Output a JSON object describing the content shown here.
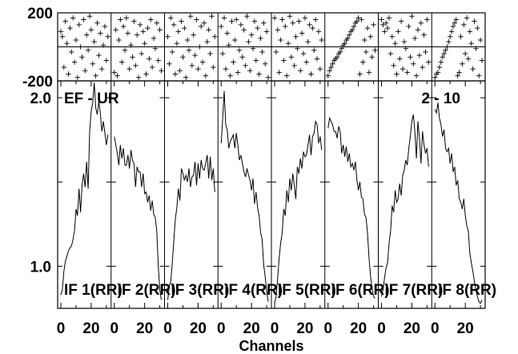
{
  "chart_data": {
    "type": "line",
    "baseline_label": "EF - UR",
    "scan_label": "2 - 10",
    "xlabel": "Channels",
    "x_ticks": [
      0,
      20
    ],
    "amplitude": {
      "ylim": [
        0.75,
        2.1
      ],
      "y_ticks": [
        1.0,
        2.0
      ],
      "y_ticks_unlabeled": [
        1.5
      ]
    },
    "phase": {
      "ylim": [
        -200,
        200
      ],
      "y_ticks": [
        -200,
        200
      ]
    },
    "panels": [
      {
        "name": "IF 1(RR)",
        "amplitude": [
          0.83,
          0.86,
          0.97,
          1.03,
          1.06,
          1.09,
          1.11,
          1.12,
          1.16,
          1.21,
          1.34,
          1.3,
          1.46,
          1.32,
          1.48,
          1.55,
          1.47,
          1.62,
          1.46,
          1.8,
          1.92,
          1.97,
          2.09,
          1.94,
          1.9,
          1.98,
          1.91,
          1.8,
          1.86,
          1.79,
          1.72,
          1.78
        ],
        "phase": [
          90,
          60,
          -120,
          150,
          20,
          -160,
          110,
          -30,
          170,
          -90,
          40,
          -180,
          130,
          0,
          -60,
          160,
          -140,
          70,
          -20,
          180,
          100,
          -100,
          30,
          -170,
          140,
          -50,
          80,
          -130,
          10,
          120,
          -80,
          60
        ]
      },
      {
        "name": "IF 2(RR)",
        "amplitude": [
          1.77,
          1.72,
          1.67,
          1.6,
          1.72,
          1.64,
          1.7,
          1.6,
          1.6,
          1.66,
          1.58,
          1.69,
          1.63,
          1.61,
          1.47,
          1.59,
          1.56,
          1.56,
          1.47,
          1.55,
          1.43,
          1.44,
          1.38,
          1.42,
          1.33,
          1.39,
          1.31,
          1.29,
          1.21,
          1.0,
          0.86,
          0.8
        ],
        "phase": [
          -150,
          100,
          -170,
          40,
          160,
          -90,
          120,
          -20,
          170,
          80,
          -130,
          10,
          -60,
          150,
          -110,
          70,
          -180,
          130,
          -40,
          90,
          20,
          -160,
          110,
          -70,
          160,
          -120,
          50,
          -10,
          140,
          -80,
          100,
          -140
        ]
      },
      {
        "name": "IF 3(RR)",
        "amplitude": [
          0.8,
          0.88,
          0.91,
          1.02,
          1.15,
          1.28,
          1.35,
          1.46,
          1.39,
          1.58,
          1.55,
          1.51,
          1.54,
          1.5,
          1.58,
          1.47,
          1.53,
          1.54,
          1.62,
          1.48,
          1.61,
          1.52,
          1.63,
          1.58,
          1.57,
          1.61,
          1.66,
          1.52,
          1.65,
          1.51,
          1.58,
          1.44
        ],
        "phase": [
          60,
          -100,
          170,
          -30,
          130,
          -160,
          20,
          90,
          -140,
          150,
          -60,
          110,
          -180,
          40,
          -20,
          180,
          -110,
          70,
          -50,
          160,
          -130,
          0,
          120,
          -90,
          140,
          -170,
          30,
          100,
          -40,
          180,
          -120,
          60
        ]
      },
      {
        "name": "IF 4(RR)",
        "amplitude": [
          1.73,
          1.87,
          2.04,
          1.84,
          1.81,
          1.7,
          1.74,
          1.76,
          1.78,
          1.7,
          1.79,
          1.72,
          1.63,
          1.66,
          1.61,
          1.56,
          1.53,
          1.58,
          1.54,
          1.51,
          1.45,
          1.52,
          1.37,
          1.44,
          1.35,
          1.3,
          1.2,
          1.16,
          1.01,
          0.94,
          0.85,
          0.79
        ],
        "phase": [
          120,
          -40,
          170,
          -130,
          80,
          10,
          -170,
          150,
          -90,
          40,
          160,
          -150,
          -20,
          130,
          -60,
          100,
          -110,
          180,
          30,
          -140,
          70,
          -10,
          150,
          -80,
          110,
          -160,
          50,
          -30,
          140,
          -100,
          90,
          -180
        ]
      },
      {
        "name": "IF 5(RR)",
        "amplitude": [
          0.78,
          0.82,
          0.93,
          1.05,
          1.14,
          1.2,
          1.34,
          1.3,
          1.45,
          1.38,
          1.52,
          1.45,
          1.55,
          1.48,
          1.4,
          1.59,
          1.55,
          1.64,
          1.58,
          1.68,
          1.65,
          1.66,
          1.72,
          1.78,
          1.66,
          1.77,
          1.79,
          1.86,
          1.84,
          1.73,
          1.77,
          1.69
        ],
        "phase": [
          170,
          -30,
          100,
          -150,
          40,
          160,
          -80,
          120,
          -170,
          20,
          180,
          -60,
          140,
          -110,
          60,
          -10,
          150,
          -140,
          80,
          -40,
          170,
          -90,
          30,
          130,
          -160,
          110,
          -20,
          160,
          -70,
          90,
          -130,
          40
        ]
      },
      {
        "name": "IF 6(RR)",
        "amplitude": [
          1.82,
          1.88,
          1.86,
          1.84,
          1.8,
          1.8,
          1.76,
          1.83,
          1.8,
          1.67,
          1.72,
          1.65,
          1.71,
          1.62,
          1.67,
          1.59,
          1.61,
          1.57,
          1.62,
          1.51,
          1.45,
          1.5,
          1.41,
          1.4,
          1.31,
          1.29,
          1.2,
          1.05,
          0.94,
          0.87,
          0.82,
          0.81
        ],
        "phase": [
          -170,
          -140,
          -120,
          -100,
          -80,
          -70,
          -60,
          -40,
          -30,
          -10,
          10,
          20,
          40,
          50,
          70,
          90,
          100,
          120,
          140,
          150,
          170,
          -160,
          160,
          -90,
          40,
          -30,
          110,
          -150,
          60,
          -60,
          130,
          -20
        ]
      },
      {
        "name": "IF 7(RR)",
        "amplitude": [
          0.82,
          0.86,
          0.93,
          0.99,
          1.02,
          1.14,
          1.21,
          1.36,
          1.32,
          1.45,
          1.38,
          1.4,
          1.49,
          1.42,
          1.54,
          1.57,
          1.63,
          1.6,
          1.7,
          1.77,
          1.86,
          1.9,
          1.8,
          1.64,
          1.86,
          1.76,
          1.61,
          1.8,
          1.72,
          1.67,
          1.7,
          1.59
        ],
        "phase": [
          160,
          130,
          90,
          140,
          110,
          170,
          -40,
          60,
          -110,
          20,
          -160,
          90,
          -70,
          150,
          -130,
          30,
          -10,
          -150,
          120,
          -60,
          180,
          -100,
          50,
          -170,
          100,
          -50,
          140,
          -120,
          70,
          -30,
          160,
          -90
        ]
      },
      {
        "name": "IF 8(RR)",
        "amplitude": [
          1.93,
          1.91,
          1.97,
          1.88,
          1.84,
          1.77,
          1.81,
          1.7,
          1.68,
          1.7,
          1.61,
          1.67,
          1.56,
          1.59,
          1.48,
          1.51,
          1.4,
          1.38,
          1.34,
          1.4,
          1.3,
          1.24,
          1.21,
          1.08,
          1.02,
          0.97,
          0.91,
          0.86,
          0.82,
          0.79,
          0.78,
          0.8
        ],
        "phase": [
          -180,
          -160,
          -150,
          -120,
          -90,
          -60,
          -40,
          -20,
          0,
          30,
          60,
          90,
          120,
          140,
          160,
          -170,
          -150,
          60,
          -100,
          130,
          -40,
          170,
          -70,
          90,
          20,
          -130,
          150,
          -10,
          110,
          -170,
          40,
          -80
        ]
      }
    ]
  }
}
